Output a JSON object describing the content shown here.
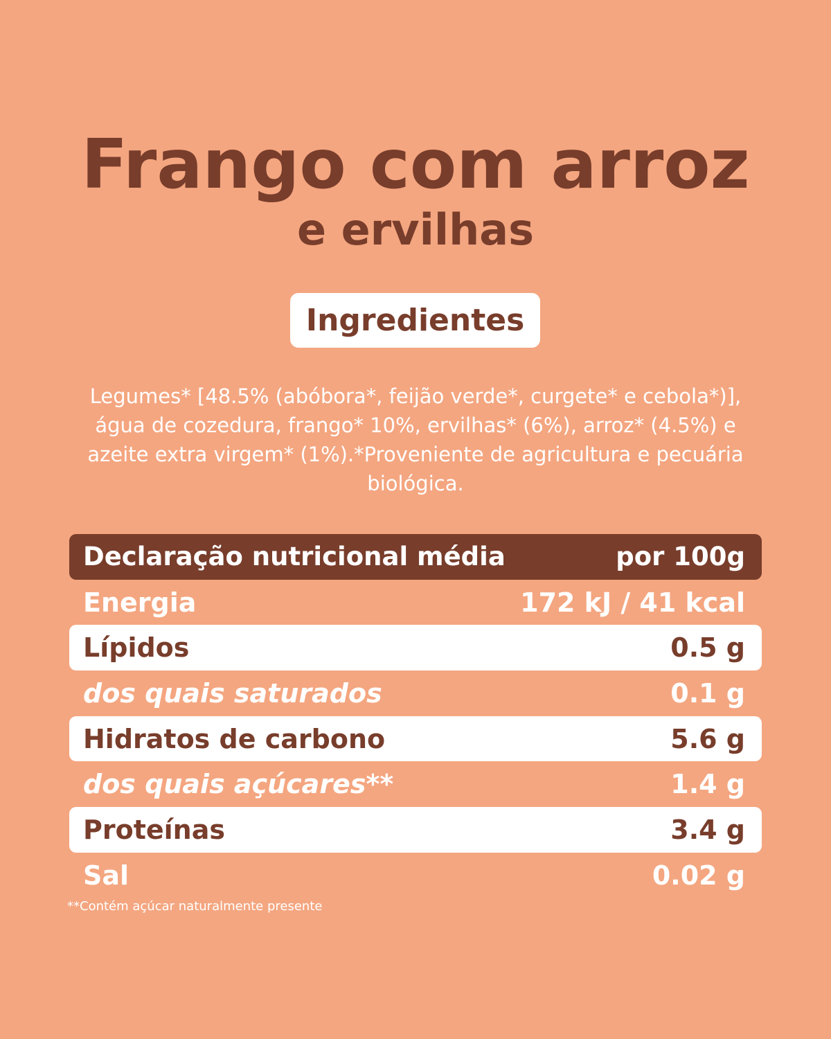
{
  "product": {
    "title": "Frango com arroz",
    "subtitle": "e ervilhas"
  },
  "ingredients": {
    "heading": "Ingredientes",
    "text": "Legumes* [48.5% (abóbora*, feijão verde*, curgete* e cebola*)], água de cozedura, frango* 10%, ervilhas* (6%), arroz* (4.5%) e azeite extra virgem* (1%).*Proveniente de agricultura e pecuária biológica."
  },
  "nutrition": {
    "header": {
      "label": "Declaração nutricional média",
      "value": "por 100g"
    },
    "rows": [
      {
        "label": "Energia",
        "value": "172 kJ / 41 kcal"
      },
      {
        "label": "Lípidos",
        "value": "0.5 g"
      },
      {
        "label": "dos quais saturados",
        "value": "0.1 g"
      },
      {
        "label": "Hidratos de carbono",
        "value": "5.6 g"
      },
      {
        "label": "dos quais açúcares**",
        "value": "1.4 g"
      },
      {
        "label": "Proteínas",
        "value": "3.4 g"
      },
      {
        "label": "Sal",
        "value": "0.02 g"
      }
    ],
    "footnote": "**Contém açúcar naturalmente presente"
  },
  "colors": {
    "background": "#F4A680",
    "brown": "#783D2B",
    "white": "#FFFFFF"
  }
}
